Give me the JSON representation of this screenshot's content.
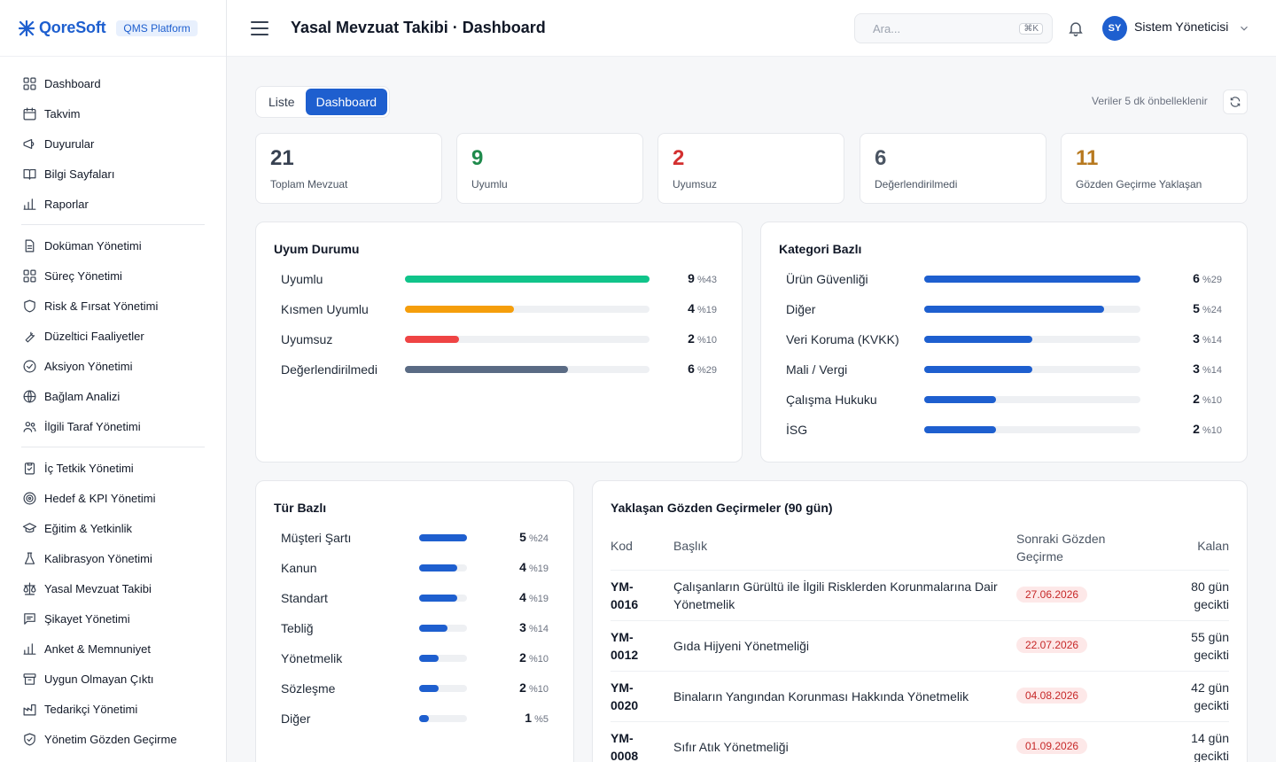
{
  "brand": {
    "name": "QoreSoft",
    "badge": "QMS Platform"
  },
  "header": {
    "title": "Yasal Mevzuat Takibi · Dashboard",
    "search_placeholder": "Ara...",
    "search_kbd": "⌘K",
    "user_initials": "SY",
    "user_name": "Sistem Yöneticisi"
  },
  "sidebar": {
    "group1": [
      {
        "label": "Dashboard",
        "icon": "grid-icon"
      },
      {
        "label": "Takvim",
        "icon": "calendar-icon"
      },
      {
        "label": "Duyurular",
        "icon": "megaphone-icon"
      },
      {
        "label": "Bilgi Sayfaları",
        "icon": "book-icon"
      },
      {
        "label": "Raporlar",
        "icon": "bar-chart-icon"
      }
    ],
    "group2": [
      {
        "label": "Doküman Yönetimi",
        "icon": "file-icon"
      },
      {
        "label": "Süreç Yönetimi",
        "icon": "grid-icon"
      },
      {
        "label": "Risk & Fırsat Yönetimi",
        "icon": "shield-icon"
      },
      {
        "label": "Düzeltici Faaliyetler",
        "icon": "wrench-icon"
      },
      {
        "label": "Aksiyon Yönetimi",
        "icon": "check-circle-icon"
      },
      {
        "label": "Bağlam Analizi",
        "icon": "globe-icon"
      },
      {
        "label": "İlgili Taraf Yönetimi",
        "icon": "users-icon"
      }
    ],
    "group3": [
      {
        "label": "İç Tetkik Yönetimi",
        "icon": "clipboard-icon"
      },
      {
        "label": "Hedef & KPI Yönetimi",
        "icon": "target-icon"
      },
      {
        "label": "Eğitim & Yetkinlik",
        "icon": "graduation-icon"
      },
      {
        "label": "Kalibrasyon Yönetimi",
        "icon": "flask-icon"
      },
      {
        "label": "Yasal Mevzuat Takibi",
        "icon": "scale-icon"
      },
      {
        "label": "Şikayet Yönetimi",
        "icon": "message-icon"
      },
      {
        "label": "Anket & Memnuniyet",
        "icon": "bar-chart-icon"
      },
      {
        "label": "Uygun Olmayan Çıktı",
        "icon": "archive-icon"
      },
      {
        "label": "Tedarikçi Yönetimi",
        "icon": "factory-icon"
      },
      {
        "label": "Yönetim Gözden Geçirme",
        "icon": "shield-check-icon"
      }
    ]
  },
  "toolbar": {
    "tab_list": "Liste",
    "tab_dashboard": "Dashboard",
    "cache_note": "Veriler 5 dk önbelleklenir"
  },
  "stats": [
    {
      "value": "21",
      "label": "Toplam Mevzuat",
      "color": "#374151"
    },
    {
      "value": "9",
      "label": "Uyumlu",
      "color": "#1f8a4c"
    },
    {
      "value": "2",
      "label": "Uyumsuz",
      "color": "#d32f2f"
    },
    {
      "value": "6",
      "label": "Değerlendirilmedi",
      "color": "#4b5563"
    },
    {
      "value": "11",
      "label": "Gözden Geçirme Yaklaşan",
      "color": "#b7791f"
    }
  ],
  "compliance": {
    "title": "Uyum Durumu",
    "rows": [
      {
        "label": "Uyumlu",
        "count": "9",
        "pct": "%43",
        "ratio": 1.0,
        "color": "#10c48a"
      },
      {
        "label": "Kısmen Uyumlu",
        "count": "4",
        "pct": "%19",
        "ratio": 0.444,
        "color": "#f59e0b"
      },
      {
        "label": "Uyumsuz",
        "count": "2",
        "pct": "%10",
        "ratio": 0.222,
        "color": "#ef4444"
      },
      {
        "label": "Değerlendirilmedi",
        "count": "6",
        "pct": "%29",
        "ratio": 0.667,
        "color": "#5a6b84"
      }
    ]
  },
  "category": {
    "title": "Kategori Bazlı",
    "rows": [
      {
        "label": "Ürün Güvenliği",
        "count": "6",
        "pct": "%29",
        "ratio": 1.0
      },
      {
        "label": "Diğer",
        "count": "5",
        "pct": "%24",
        "ratio": 0.833
      },
      {
        "label": "Veri Koruma (KVKK)",
        "count": "3",
        "pct": "%14",
        "ratio": 0.5
      },
      {
        "label": "Mali / Vergi",
        "count": "3",
        "pct": "%14",
        "ratio": 0.5
      },
      {
        "label": "Çalışma Hukuku",
        "count": "2",
        "pct": "%10",
        "ratio": 0.333
      },
      {
        "label": "İSG",
        "count": "2",
        "pct": "%10",
        "ratio": 0.333
      }
    ]
  },
  "type": {
    "title": "Tür Bazlı",
    "rows": [
      {
        "label": "Müşteri Şartı",
        "count": "5",
        "pct": "%24",
        "ratio": 1.0
      },
      {
        "label": "Kanun",
        "count": "4",
        "pct": "%19",
        "ratio": 0.8
      },
      {
        "label": "Standart",
        "count": "4",
        "pct": "%19",
        "ratio": 0.8
      },
      {
        "label": "Tebliğ",
        "count": "3",
        "pct": "%14",
        "ratio": 0.6
      },
      {
        "label": "Yönetmelik",
        "count": "2",
        "pct": "%10",
        "ratio": 0.4
      },
      {
        "label": "Sözleşme",
        "count": "2",
        "pct": "%10",
        "ratio": 0.4
      },
      {
        "label": "Diğer",
        "count": "1",
        "pct": "%5",
        "ratio": 0.2
      }
    ]
  },
  "reviews": {
    "title": "Yaklaşan Gözden Geçirmeler (90 gün)",
    "columns": {
      "code": "Kod",
      "title": "Başlık",
      "next": "Sonraki Gözden Geçirme",
      "left": "Kalan"
    },
    "rows": [
      {
        "code": "YM-0016",
        "title": "Çalışanların Gürültü ile İlgili Risklerden Korunmalarına Dair Yönetmelik",
        "date": "27.06.2026",
        "left": "80 gün gecikti"
      },
      {
        "code": "YM-0012",
        "title": "Gıda Hijyeni Yönetmeliği",
        "date": "22.07.2026",
        "left": "55 gün gecikti"
      },
      {
        "code": "YM-0020",
        "title": "Binaların Yangından Korunması Hakkında Yönetmelik",
        "date": "04.08.2026",
        "left": "42 gün gecikti"
      },
      {
        "code": "YM-0008",
        "title": "Sıfır Atık Yönetmeliği",
        "date": "01.09.2026",
        "left": "14 gün gecikti"
      }
    ]
  }
}
